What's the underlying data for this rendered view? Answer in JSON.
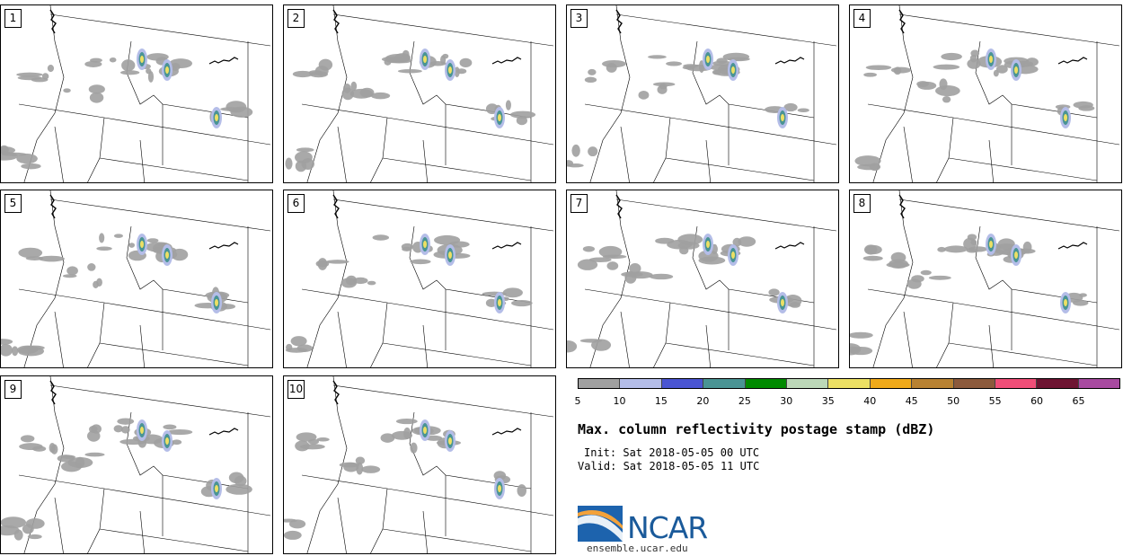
{
  "panels": [
    {
      "label": "1"
    },
    {
      "label": "2"
    },
    {
      "label": "3"
    },
    {
      "label": "4"
    },
    {
      "label": "5"
    },
    {
      "label": "6"
    },
    {
      "label": "7"
    },
    {
      "label": "8"
    },
    {
      "label": "9"
    },
    {
      "label": "10"
    }
  ],
  "colorbar": {
    "ticks": [
      "5",
      "10",
      "15",
      "20",
      "25",
      "30",
      "35",
      "40",
      "45",
      "50",
      "55",
      "60",
      "65"
    ],
    "colors": [
      "#a0a0a0",
      "#b4bde8",
      "#4a55d2",
      "#4a9494",
      "#008a00",
      "#bcd8b8",
      "#ece064",
      "#f0aa1a",
      "#b88232",
      "#8c5a3c",
      "#f04e78",
      "#6e1432",
      "#a84aa0"
    ]
  },
  "title": "Max. column reflectivity postage stamp (dBZ)",
  "init": "Init: Sat 2018-05-05 00 UTC",
  "valid": "Valid: Sat 2018-05-05 11 UTC",
  "logo": {
    "text": "NCAR",
    "url": "ensemble.ucar.edu"
  }
}
